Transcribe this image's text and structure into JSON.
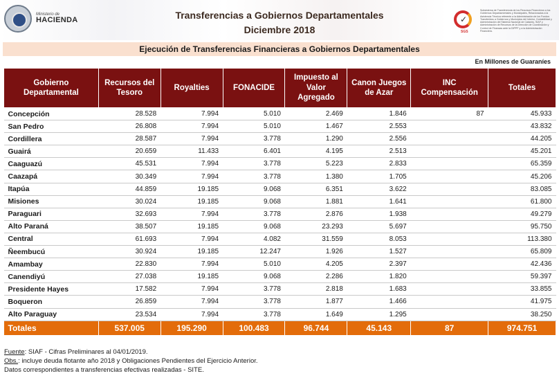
{
  "header": {
    "title_line1": "Transferencias a Gobiernos Departamentales",
    "title_line2": "Diciembre 2018",
    "logo_small_text": "Ministerio de",
    "logo_big_text": "HACIENDA",
    "cert_label": "SGS",
    "cert_text": "Subsistema de Transferencia de los Recursos Financieros a los Gobiernos Departamentales y Municipales, Relacionados a la Asistencia Técnica referente a la Administración de los Fondos Transferidos a Gobiernos y Municipios del Interior, Contabilidad y Administración del Sistema Nacional de Catastro, SIAF y Administración de Recursos de la Dirección de Coordinación y Control de Finanzas ante la DIPPF y a la Administración Financiera."
  },
  "subtitle": "Ejecución de Transferencias Financieras a Gobiernos Departamentales",
  "units": "En Millones de Guaraníes",
  "colors": {
    "header_bg": "#7a1111",
    "total_bg": "#e36c0a",
    "subtitle_bg": "#fae0cf"
  },
  "table": {
    "columns": [
      "Gobierno Departamental",
      "Recursos del Tesoro",
      "Royalties",
      "FONACIDE",
      "Impuesto al Valor Agregado",
      "Canon Juegos de Azar",
      "INC Compensación",
      "Totales"
    ],
    "rows": [
      [
        "Concepción",
        "28.528",
        "7.994",
        "5.010",
        "2.469",
        "1.846",
        "87",
        "45.933"
      ],
      [
        "San Pedro",
        "26.808",
        "7.994",
        "5.010",
        "1.467",
        "2.553",
        "",
        "43.832"
      ],
      [
        "Cordillera",
        "28.587",
        "7.994",
        "3.778",
        "1.290",
        "2.556",
        "",
        "44.205"
      ],
      [
        "Guairá",
        "20.659",
        "11.433",
        "6.401",
        "4.195",
        "2.513",
        "",
        "45.201"
      ],
      [
        "Caaguazú",
        "45.531",
        "7.994",
        "3.778",
        "5.223",
        "2.833",
        "",
        "65.359"
      ],
      [
        "Caazapá",
        "30.349",
        "7.994",
        "3.778",
        "1.380",
        "1.705",
        "",
        "45.206"
      ],
      [
        "Itapúa",
        "44.859",
        "19.185",
        "9.068",
        "6.351",
        "3.622",
        "",
        "83.085"
      ],
      [
        "Misiones",
        "30.024",
        "19.185",
        "9.068",
        "1.881",
        "1.641",
        "",
        "61.800"
      ],
      [
        "Paraguari",
        "32.693",
        "7.994",
        "3.778",
        "2.876",
        "1.938",
        "",
        "49.279"
      ],
      [
        "Alto Paraná",
        "38.507",
        "19.185",
        "9.068",
        "23.293",
        "5.697",
        "",
        "95.750"
      ],
      [
        "Central",
        "61.693",
        "7.994",
        "4.082",
        "31.559",
        "8.053",
        "",
        "113.380"
      ],
      [
        "Ñeembucú",
        "30.924",
        "19.185",
        "12.247",
        "1.926",
        "1.527",
        "",
        "65.809"
      ],
      [
        "Amambay",
        "22.830",
        "7.994",
        "5.010",
        "4.205",
        "2.397",
        "",
        "42.436"
      ],
      [
        "Canendiyú",
        "27.038",
        "19.185",
        "9.068",
        "2.286",
        "1.820",
        "",
        "59.397"
      ],
      [
        "Presidente Hayes",
        "17.582",
        "7.994",
        "3.778",
        "2.818",
        "1.683",
        "",
        "33.855"
      ],
      [
        "Boqueron",
        "26.859",
        "7.994",
        "3.778",
        "1.877",
        "1.466",
        "",
        "41.975"
      ],
      [
        "Alto Paraguay",
        "23.534",
        "7.994",
        "3.778",
        "1.649",
        "1.295",
        "",
        "38.250"
      ]
    ],
    "totals": [
      "Totales",
      "537.005",
      "195.290",
      "100.483",
      "96.744",
      "45.143",
      "87",
      "974.751"
    ]
  },
  "notes": {
    "fuente_label": "Fuente",
    "fuente_text": ": SIAF - Cifras Preliminares al 04/01/2019.",
    "obs_label": "Obs.",
    "obs_text": ": incluye deuda flotante año 2018 y Obligaciones Pendientes del Ejercicio Anterior.",
    "datos_text": "Datos correspondientes a transferencias efectivas realizadas - SITE."
  }
}
